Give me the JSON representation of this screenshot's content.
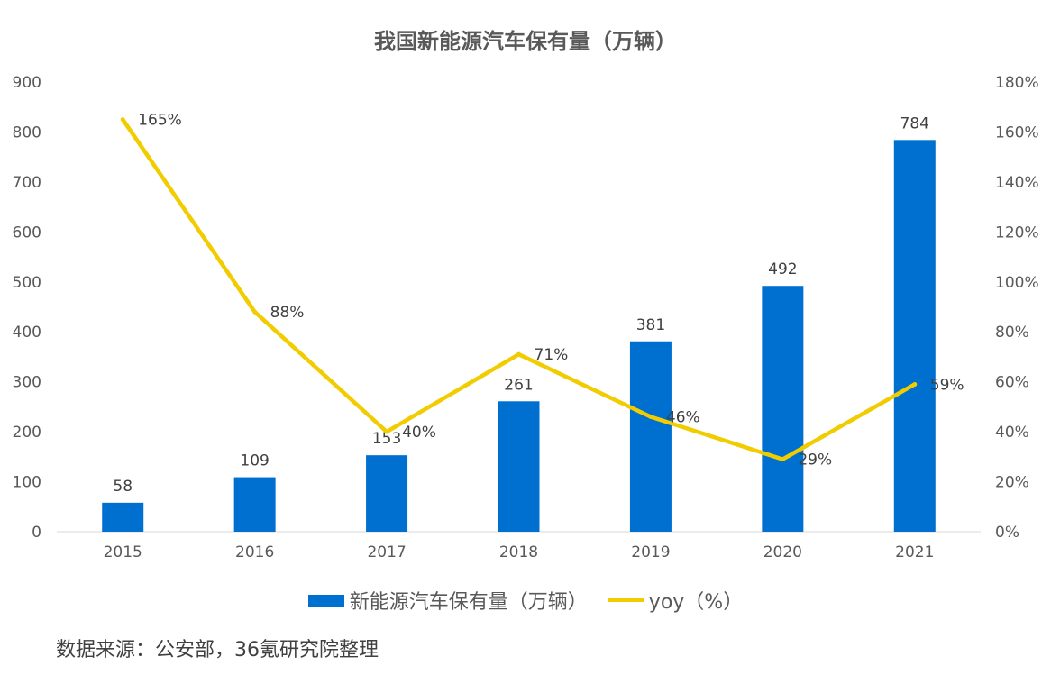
{
  "chart_data": {
    "type": "bar",
    "title": "我国新能源汽车保有量（万辆）",
    "categories": [
      "2015",
      "2016",
      "2017",
      "2018",
      "2019",
      "2020",
      "2021"
    ],
    "series": [
      {
        "name": "新能源汽车保有量（万辆）",
        "type": "bar",
        "axis": "left",
        "values": [
          58,
          109,
          153,
          261,
          381,
          492,
          784
        ],
        "labels": [
          "58",
          "109",
          "153",
          "261",
          "381",
          "492",
          "784"
        ],
        "color": "#0070d0"
      },
      {
        "name": "yoy（%）",
        "type": "line",
        "axis": "right",
        "values": [
          165,
          88,
          40,
          71,
          46,
          29,
          59
        ],
        "labels": [
          "165%",
          "88%",
          "40%",
          "71%",
          "46%",
          "29%",
          "59%"
        ],
        "color": "#f0cc00"
      }
    ],
    "y_left": {
      "ylim": [
        0,
        900
      ],
      "ticks": [
        "0",
        "100",
        "200",
        "300",
        "400",
        "500",
        "600",
        "700",
        "800",
        "900"
      ]
    },
    "y_right": {
      "ylim": [
        0,
        180
      ],
      "ticks": [
        "0%",
        "20%",
        "40%",
        "60%",
        "80%",
        "100%",
        "120%",
        "140%",
        "160%",
        "180%"
      ]
    },
    "legend": "bottom",
    "grid": false
  },
  "source": "数据来源：公安部，36氪研究院整理"
}
